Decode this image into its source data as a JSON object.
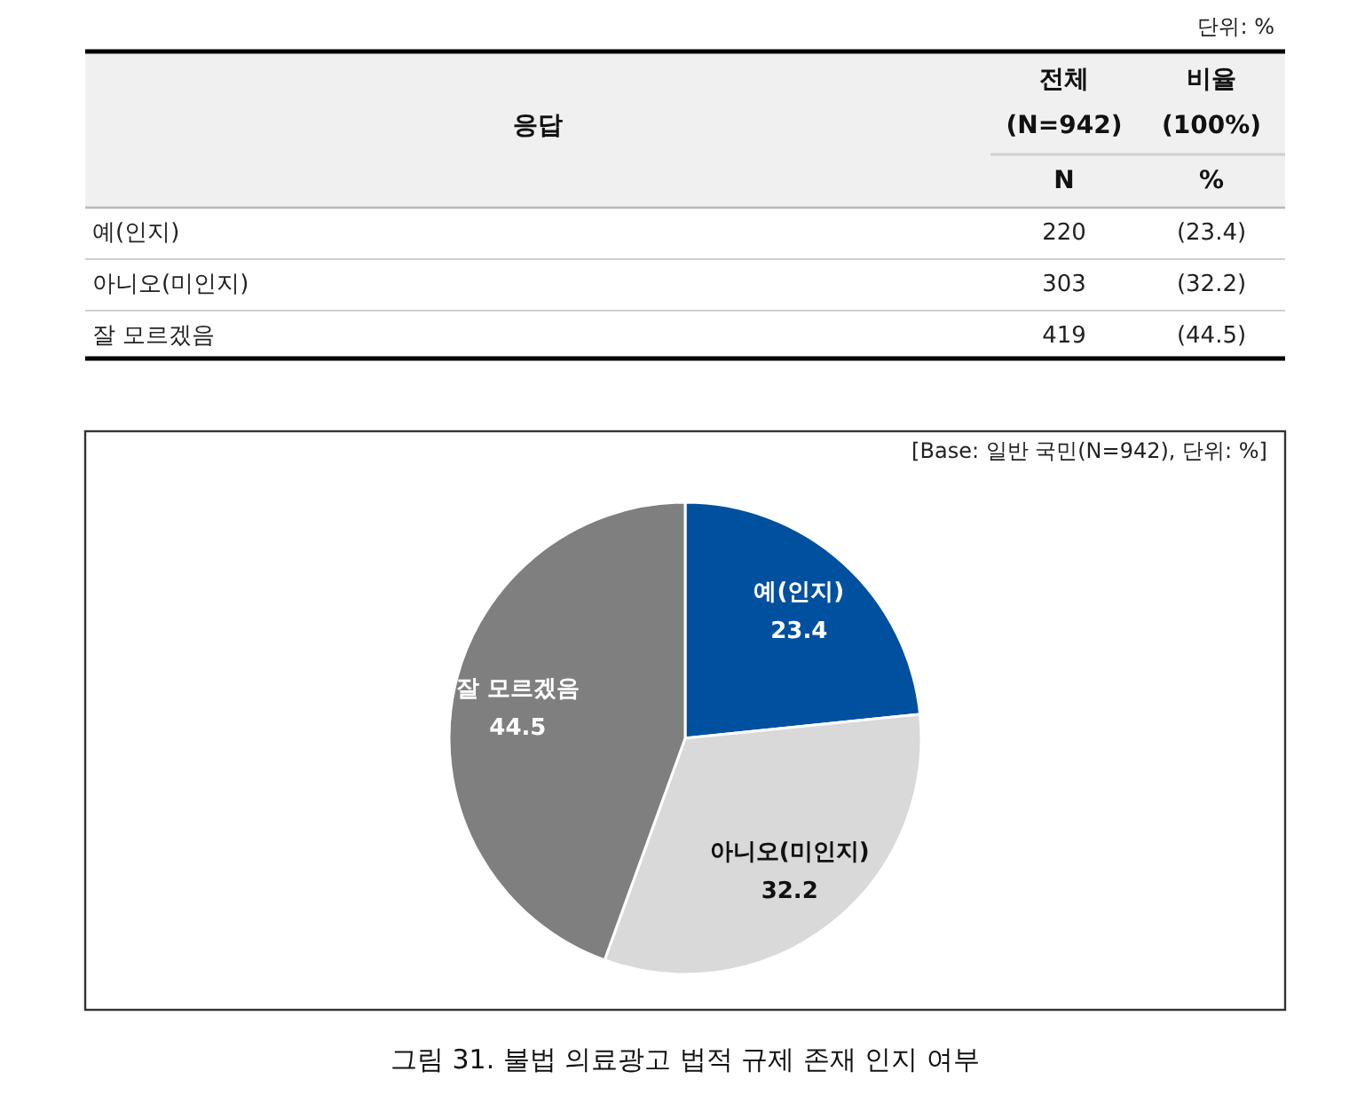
{
  "chart_data": [
    {
      "type": "other",
      "subtitle": "단위: %",
      "categories": [
        "예(인지)",
        "아니오(미인지)",
        "잘 모르겠음"
      ],
      "series": [
        {
          "name": "N",
          "values": [
            220,
            303,
            419
          ]
        },
        {
          "name": "%",
          "values": [
            23.4,
            32.2,
            44.5
          ],
          "value_labels": [
            "(23.4)",
            "(32.2)",
            "(44.5)"
          ]
        }
      ],
      "data_labels": true,
      "annotations": [
        "응답",
        "전체 (N=942)",
        "비율 (100%)"
      ]
    },
    {
      "type": "pie",
      "title": "그림 31. 불법 의료광고 법적 규제 존재 인지 여부",
      "subtitle": "[Base: 일반 국민(N=942), 단위: %]",
      "categories": [
        "예(인지)",
        "아니오(미인지)",
        "잘 모르겠음"
      ],
      "values": [
        23.4,
        32.2,
        44.5
      ],
      "colors": [
        "#0050a0",
        "#d9d9d9",
        "#7f7f7f"
      ],
      "data_labels": true
    }
  ]
}
